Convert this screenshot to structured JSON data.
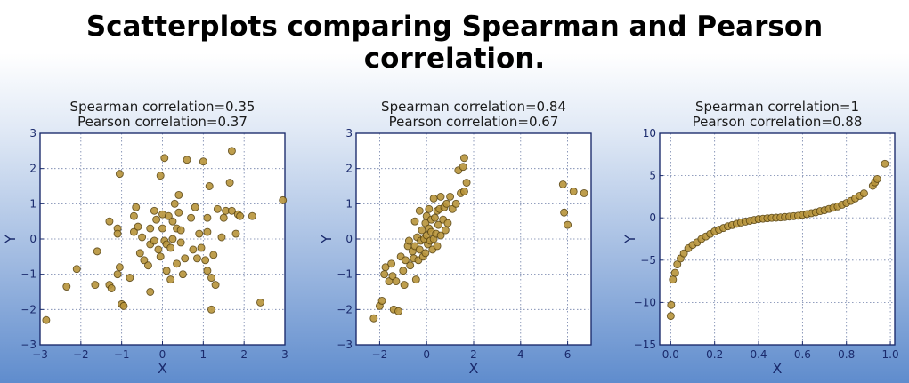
{
  "headline": "Scatterplots comparing Spearman and Pearson correlation.",
  "chart_data": [
    {
      "type": "scatter",
      "title": [
        "Spearman correlation=0.35",
        "Pearson correlation=0.37"
      ],
      "xlabel": "X",
      "ylabel": "Y",
      "xlim": [
        -3,
        3
      ],
      "ylim": [
        -3,
        3
      ],
      "xticks": [
        -3,
        -2,
        -1,
        0,
        1,
        2,
        3
      ],
      "yticks": [
        -3,
        -2,
        -1,
        0,
        1,
        2,
        3
      ],
      "xtick_labels": [
        "−3",
        "−2",
        "−1",
        "0",
        "1",
        "2",
        "3"
      ],
      "ytick_labels": [
        "−3",
        "−2",
        "−1",
        "0",
        "1",
        "2",
        "3"
      ],
      "grid": true,
      "marker_color": "#b8943a",
      "points": [
        [
          -2.85,
          -2.3
        ],
        [
          -2.1,
          -0.85
        ],
        [
          -2.35,
          -1.35
        ],
        [
          -1.6,
          -0.35
        ],
        [
          -1.65,
          -1.3
        ],
        [
          -1.3,
          0.5
        ],
        [
          -1.3,
          -1.3
        ],
        [
          -1.25,
          -1.4
        ],
        [
          -1.1,
          0.3
        ],
        [
          -1.1,
          0.15
        ],
        [
          -1.1,
          -1.0
        ],
        [
          -1.05,
          -0.8
        ],
        [
          -1.0,
          -1.85
        ],
        [
          -0.95,
          -1.9
        ],
        [
          -1.05,
          1.85
        ],
        [
          -0.8,
          -1.1
        ],
        [
          -0.7,
          0.2
        ],
        [
          -0.7,
          0.65
        ],
        [
          -0.65,
          0.9
        ],
        [
          -0.6,
          0.35
        ],
        [
          -0.55,
          -0.4
        ],
        [
          -0.5,
          0.05
        ],
        [
          -0.45,
          -0.6
        ],
        [
          -0.35,
          -0.75
        ],
        [
          -0.3,
          -0.15
        ],
        [
          -0.3,
          -1.5
        ],
        [
          -0.3,
          0.3
        ],
        [
          -0.2,
          0.8
        ],
        [
          -0.2,
          -0.05
        ],
        [
          -0.15,
          0.55
        ],
        [
          -0.1,
          -0.3
        ],
        [
          -0.05,
          -0.5
        ],
        [
          -0.05,
          1.8
        ],
        [
          0.0,
          0.7
        ],
        [
          0.0,
          0.3
        ],
        [
          0.05,
          2.3
        ],
        [
          0.05,
          -0.05
        ],
        [
          0.1,
          -0.15
        ],
        [
          0.1,
          -0.9
        ],
        [
          0.15,
          0.65
        ],
        [
          0.2,
          -0.25
        ],
        [
          0.2,
          -1.15
        ],
        [
          0.25,
          0.5
        ],
        [
          0.25,
          0.0
        ],
        [
          0.3,
          1.0
        ],
        [
          0.35,
          0.3
        ],
        [
          0.35,
          -0.7
        ],
        [
          0.4,
          1.25
        ],
        [
          0.4,
          0.75
        ],
        [
          0.45,
          0.25
        ],
        [
          0.45,
          -0.1
        ],
        [
          0.5,
          -1.0
        ],
        [
          0.55,
          -0.55
        ],
        [
          0.6,
          2.25
        ],
        [
          0.7,
          0.6
        ],
        [
          0.75,
          -0.3
        ],
        [
          0.8,
          0.9
        ],
        [
          0.85,
          -0.55
        ],
        [
          0.9,
          0.15
        ],
        [
          0.95,
          -0.25
        ],
        [
          1.0,
          2.2
        ],
        [
          1.05,
          -0.6
        ],
        [
          1.1,
          0.6
        ],
        [
          1.1,
          0.2
        ],
        [
          1.1,
          -0.9
        ],
        [
          1.15,
          1.5
        ],
        [
          1.2,
          -2.0
        ],
        [
          1.2,
          -1.1
        ],
        [
          1.25,
          -0.45
        ],
        [
          1.3,
          -1.3
        ],
        [
          1.35,
          0.85
        ],
        [
          1.45,
          0.05
        ],
        [
          1.5,
          0.6
        ],
        [
          1.55,
          0.8
        ],
        [
          1.65,
          1.6
        ],
        [
          1.7,
          0.8
        ],
        [
          1.7,
          2.5
        ],
        [
          1.8,
          0.15
        ],
        [
          1.85,
          0.7
        ],
        [
          1.9,
          0.65
        ],
        [
          2.2,
          0.65
        ],
        [
          2.4,
          -1.8
        ],
        [
          2.95,
          1.1
        ]
      ]
    },
    {
      "type": "scatter",
      "title": [
        "Spearman correlation=0.84",
        "Pearson correlation=0.67"
      ],
      "xlabel": "X",
      "ylabel": "Y",
      "xlim": [
        -3,
        7
      ],
      "ylim": [
        -3,
        3
      ],
      "xticks": [
        -2,
        0,
        2,
        4,
        6
      ],
      "yticks": [
        -3,
        -2,
        -1,
        0,
        1,
        2,
        3
      ],
      "xtick_labels": [
        "−2",
        "0",
        "2",
        "4",
        "6"
      ],
      "ytick_labels": [
        "−3",
        "−2",
        "−1",
        "0",
        "1",
        "2",
        "3"
      ],
      "grid": true,
      "marker_color": "#b8943a",
      "points": [
        [
          -2.25,
          -2.25
        ],
        [
          -2.0,
          -1.9
        ],
        [
          -1.9,
          -1.75
        ],
        [
          -1.8,
          -1.0
        ],
        [
          -1.75,
          -0.8
        ],
        [
          -1.6,
          -1.2
        ],
        [
          -1.5,
          -0.7
        ],
        [
          -1.45,
          -1.05
        ],
        [
          -1.4,
          -2.0
        ],
        [
          -1.3,
          -1.2
        ],
        [
          -1.2,
          -2.05
        ],
        [
          -1.1,
          -0.5
        ],
        [
          -1.0,
          -0.9
        ],
        [
          -0.95,
          -1.3
        ],
        [
          -0.9,
          -0.6
        ],
        [
          -0.8,
          -0.2
        ],
        [
          -0.75,
          -0.05
        ],
        [
          -0.7,
          -0.75
        ],
        [
          -0.6,
          -0.35
        ],
        [
          -0.55,
          -0.55
        ],
        [
          -0.5,
          0.5
        ],
        [
          -0.5,
          -0.2
        ],
        [
          -0.45,
          -1.15
        ],
        [
          -0.4,
          0.05
        ],
        [
          -0.35,
          -0.6
        ],
        [
          -0.3,
          -0.3
        ],
        [
          -0.3,
          0.8
        ],
        [
          -0.25,
          -0.05
        ],
        [
          -0.2,
          0.25
        ],
        [
          -0.15,
          -0.5
        ],
        [
          -0.1,
          0.0
        ],
        [
          -0.05,
          0.45
        ],
        [
          -0.05,
          -0.4
        ],
        [
          0.0,
          0.1
        ],
        [
          0.0,
          0.65
        ],
        [
          0.05,
          -0.15
        ],
        [
          0.1,
          0.3
        ],
        [
          0.1,
          0.85
        ],
        [
          0.15,
          -0.05
        ],
        [
          0.2,
          0.55
        ],
        [
          0.2,
          0.2
        ],
        [
          0.25,
          -0.3
        ],
        [
          0.3,
          0.0
        ],
        [
          0.3,
          1.15
        ],
        [
          0.35,
          0.6
        ],
        [
          0.4,
          0.15
        ],
        [
          0.45,
          0.8
        ],
        [
          0.45,
          -0.2
        ],
        [
          0.5,
          0.4
        ],
        [
          0.55,
          0.85
        ],
        [
          0.6,
          1.2
        ],
        [
          0.6,
          0.1
        ],
        [
          0.7,
          0.55
        ],
        [
          0.75,
          0.9
        ],
        [
          0.8,
          0.25
        ],
        [
          0.85,
          1.0
        ],
        [
          0.9,
          0.45
        ],
        [
          1.0,
          1.2
        ],
        [
          1.1,
          0.85
        ],
        [
          1.25,
          1.0
        ],
        [
          1.35,
          1.95
        ],
        [
          1.45,
          1.3
        ],
        [
          1.55,
          2.05
        ],
        [
          1.6,
          1.35
        ],
        [
          1.6,
          2.3
        ],
        [
          1.7,
          1.6
        ],
        [
          5.8,
          1.55
        ],
        [
          5.85,
          0.75
        ],
        [
          6.0,
          0.4
        ],
        [
          6.25,
          1.35
        ],
        [
          6.7,
          1.3
        ]
      ]
    },
    {
      "type": "scatter",
      "title": [
        "Spearman correlation=1",
        "Pearson correlation=0.88"
      ],
      "xlabel": "X",
      "ylabel": "Y",
      "xlim": [
        -0.05,
        1.02
      ],
      "ylim": [
        -15,
        10
      ],
      "xticks": [
        0.0,
        0.2,
        0.4,
        0.6,
        0.8,
        1.0
      ],
      "yticks": [
        -15,
        -10,
        -5,
        0,
        5,
        10
      ],
      "xtick_labels": [
        "0.0",
        "0.2",
        "0.4",
        "0.6",
        "0.8",
        "1.0"
      ],
      "ytick_labels": [
        "−15",
        "−10",
        "−5",
        "0",
        "5",
        "10"
      ],
      "grid": true,
      "marker_color": "#b8943a",
      "points": [
        [
          0.0,
          -11.6
        ],
        [
          0.002,
          -10.3
        ],
        [
          0.01,
          -7.3
        ],
        [
          0.02,
          -6.5
        ],
        [
          0.03,
          -5.5
        ],
        [
          0.045,
          -4.8
        ],
        [
          0.06,
          -4.2
        ],
        [
          0.08,
          -3.6
        ],
        [
          0.1,
          -3.2
        ],
        [
          0.12,
          -2.9
        ],
        [
          0.14,
          -2.5
        ],
        [
          0.16,
          -2.2
        ],
        [
          0.18,
          -1.9
        ],
        [
          0.2,
          -1.6
        ],
        [
          0.22,
          -1.4
        ],
        [
          0.24,
          -1.2
        ],
        [
          0.26,
          -1.0
        ],
        [
          0.28,
          -0.85
        ],
        [
          0.3,
          -0.7
        ],
        [
          0.32,
          -0.55
        ],
        [
          0.34,
          -0.45
        ],
        [
          0.36,
          -0.35
        ],
        [
          0.38,
          -0.25
        ],
        [
          0.4,
          -0.15
        ],
        [
          0.42,
          -0.1
        ],
        [
          0.44,
          -0.05
        ],
        [
          0.46,
          0.0
        ],
        [
          0.48,
          0.02
        ],
        [
          0.5,
          0.05
        ],
        [
          0.52,
          0.1
        ],
        [
          0.54,
          0.15
        ],
        [
          0.56,
          0.2
        ],
        [
          0.58,
          0.25
        ],
        [
          0.6,
          0.35
        ],
        [
          0.62,
          0.45
        ],
        [
          0.64,
          0.55
        ],
        [
          0.66,
          0.65
        ],
        [
          0.68,
          0.8
        ],
        [
          0.7,
          0.9
        ],
        [
          0.72,
          1.05
        ],
        [
          0.74,
          1.2
        ],
        [
          0.76,
          1.35
        ],
        [
          0.78,
          1.55
        ],
        [
          0.8,
          1.75
        ],
        [
          0.82,
          2.0
        ],
        [
          0.84,
          2.3
        ],
        [
          0.86,
          2.6
        ],
        [
          0.88,
          2.9
        ],
        [
          0.92,
          3.8
        ],
        [
          0.93,
          4.2
        ],
        [
          0.94,
          4.6
        ],
        [
          0.975,
          6.4
        ]
      ]
    }
  ]
}
